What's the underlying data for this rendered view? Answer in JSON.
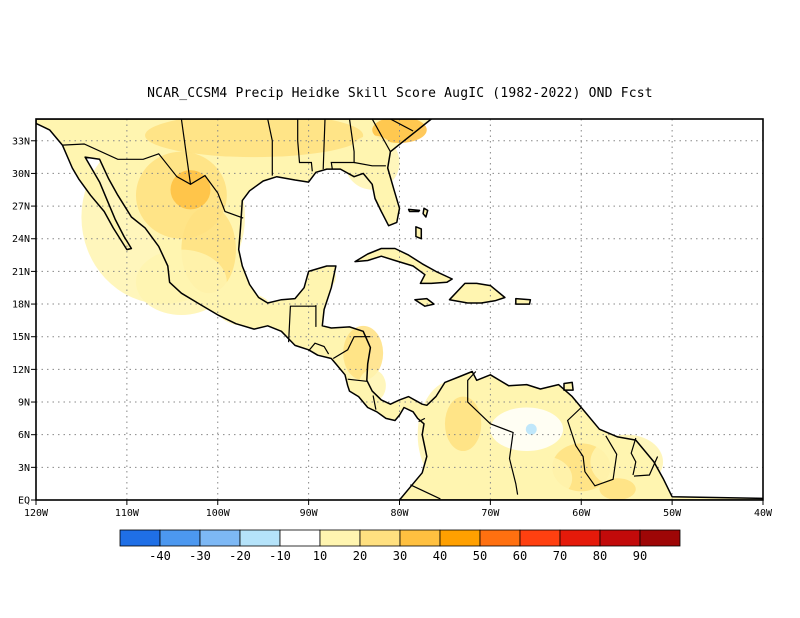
{
  "title": "NCAR_CCSM4 Precip Heidke Skill Score AugIC (1982-2022) OND Fcst",
  "map": {
    "lon_range": [
      -120,
      -40
    ],
    "lat_range": [
      0,
      35
    ],
    "x_ticks": [
      {
        "lon": -120,
        "label": "120W"
      },
      {
        "lon": -110,
        "label": "110W"
      },
      {
        "lon": -100,
        "label": "100W"
      },
      {
        "lon": -90,
        "label": "90W"
      },
      {
        "lon": -80,
        "label": "80W"
      },
      {
        "lon": -70,
        "label": "70W"
      },
      {
        "lon": -60,
        "label": "60W"
      },
      {
        "lon": -50,
        "label": "50W"
      },
      {
        "lon": -40,
        "label": "40W"
      }
    ],
    "y_ticks": [
      {
        "lat": 0,
        "label": "EQ"
      },
      {
        "lat": 3,
        "label": "3N"
      },
      {
        "lat": 6,
        "label": "6N"
      },
      {
        "lat": 9,
        "label": "9N"
      },
      {
        "lat": 12,
        "label": "12N"
      },
      {
        "lat": 15,
        "label": "15N"
      },
      {
        "lat": 18,
        "label": "18N"
      },
      {
        "lat": 21,
        "label": "21N"
      },
      {
        "lat": 24,
        "label": "24N"
      },
      {
        "lat": 27,
        "label": "27N"
      },
      {
        "lat": 30,
        "label": "30N"
      },
      {
        "lat": 33,
        "label": "33N"
      }
    ],
    "grid": "dotted"
  },
  "colorbar": {
    "colors": [
      "#1f6fe6",
      "#4c98f0",
      "#7db8f5",
      "#b5e3fa",
      "#ffffff",
      "#fff5b0",
      "#ffe080",
      "#ffc040",
      "#ffa000",
      "#ff7010",
      "#ff4010",
      "#e51a0a",
      "#c20a0a",
      "#9e0606"
    ],
    "labels": [
      "-40",
      "-30",
      "-20",
      "-10",
      "10",
      "20",
      "30",
      "40",
      "50",
      "60",
      "70",
      "80",
      "90"
    ]
  },
  "landmasses": [
    {
      "name": "north-america-mexico",
      "points": [
        [
          -120,
          34.6
        ],
        [
          -118.5,
          34
        ],
        [
          -117.1,
          32.6
        ],
        [
          -116,
          30.5
        ],
        [
          -115.3,
          29.5
        ],
        [
          -114,
          28
        ],
        [
          -112.5,
          26.5
        ],
        [
          -111.5,
          25
        ],
        [
          -110,
          23
        ],
        [
          -109.5,
          23.1
        ],
        [
          -110.3,
          24.2
        ],
        [
          -111.3,
          25.8
        ],
        [
          -112.2,
          27.6
        ],
        [
          -113,
          29.2
        ],
        [
          -114.6,
          31.5
        ],
        [
          -113,
          31.3
        ],
        [
          -112,
          29.5
        ],
        [
          -111,
          28
        ],
        [
          -109.5,
          26
        ],
        [
          -108,
          25
        ],
        [
          -106.5,
          23.3
        ],
        [
          -105.5,
          21.5
        ],
        [
          -105.3,
          20
        ],
        [
          -104,
          19
        ],
        [
          -102,
          18
        ],
        [
          -100,
          17
        ],
        [
          -98,
          16.2
        ],
        [
          -96,
          15.7
        ],
        [
          -94.5,
          16
        ],
        [
          -93,
          15.5
        ],
        [
          -91.5,
          14.2
        ],
        [
          -90,
          13.8
        ],
        [
          -89,
          13.3
        ],
        [
          -87.5,
          13
        ],
        [
          -87,
          12.5
        ],
        [
          -86,
          11.5
        ],
        [
          -85.7,
          10.5
        ],
        [
          -85.5,
          10
        ],
        [
          -84.5,
          9.5
        ],
        [
          -83.5,
          8.5
        ],
        [
          -82.5,
          8.1
        ],
        [
          -81.5,
          7.5
        ],
        [
          -80.5,
          7.3
        ],
        [
          -80,
          7.8
        ],
        [
          -79.5,
          8.5
        ],
        [
          -78.5,
          8.1
        ],
        [
          -78,
          7.5
        ],
        [
          -77.3,
          7
        ],
        [
          -77.5,
          6
        ],
        [
          -77,
          4
        ],
        [
          -77.5,
          2.5
        ],
        [
          -78.5,
          1.5
        ],
        [
          -80,
          0
        ],
        [
          -30,
          0
        ],
        [
          -50,
          0.3
        ],
        [
          -51,
          2
        ],
        [
          -52,
          3.5
        ],
        [
          -54,
          5.5
        ],
        [
          -56,
          5.8
        ],
        [
          -58,
          6.5
        ],
        [
          -59.5,
          8
        ],
        [
          -61,
          9.5
        ],
        [
          -62.5,
          10.6
        ],
        [
          -64.5,
          10.2
        ],
        [
          -66,
          10.6
        ],
        [
          -68,
          10.5
        ],
        [
          -70,
          11.5
        ],
        [
          -71.5,
          11
        ],
        [
          -72,
          11.8
        ],
        [
          -73.5,
          11.3
        ],
        [
          -75,
          10.8
        ],
        [
          -76,
          9.5
        ],
        [
          -77,
          8.7
        ],
        [
          -77.5,
          8.8
        ],
        [
          -79,
          9.5
        ],
        [
          -80,
          9.2
        ],
        [
          -81,
          8.8
        ],
        [
          -82,
          9.2
        ],
        [
          -83,
          10
        ],
        [
          -83.6,
          11
        ],
        [
          -83.5,
          12.5
        ],
        [
          -83.2,
          14
        ],
        [
          -84,
          15.5
        ],
        [
          -85.5,
          15.9
        ],
        [
          -87.5,
          15.8
        ],
        [
          -88.5,
          16
        ],
        [
          -88.3,
          17.5
        ],
        [
          -87.5,
          19.5
        ],
        [
          -87,
          21.5
        ],
        [
          -88,
          21.5
        ],
        [
          -90,
          21
        ],
        [
          -90.5,
          19.5
        ],
        [
          -91.5,
          18.5
        ],
        [
          -93,
          18.4
        ],
        [
          -94.5,
          18.1
        ],
        [
          -95.5,
          18.6
        ],
        [
          -96.5,
          19.8
        ],
        [
          -97.3,
          21.5
        ],
        [
          -97.7,
          23
        ],
        [
          -97.5,
          25
        ],
        [
          -97.3,
          27.5
        ],
        [
          -96.5,
          28.4
        ],
        [
          -95,
          29.3
        ],
        [
          -93.5,
          29.7
        ],
        [
          -91.5,
          29.4
        ],
        [
          -90,
          29.2
        ],
        [
          -89.2,
          30.1
        ],
        [
          -88,
          30.4
        ],
        [
          -86.5,
          30.4
        ],
        [
          -85,
          29.7
        ],
        [
          -84,
          30
        ],
        [
          -83,
          29
        ],
        [
          -82.7,
          27.7
        ],
        [
          -82,
          26.5
        ],
        [
          -81.2,
          25.2
        ],
        [
          -80.3,
          25.5
        ],
        [
          -80,
          26.8
        ],
        [
          -80.6,
          28.5
        ],
        [
          -81.3,
          30.5
        ],
        [
          -81,
          32
        ],
        [
          -79.5,
          33
        ],
        [
          -78,
          34
        ],
        [
          -76.5,
          35
        ],
        [
          -120,
          35
        ]
      ]
    },
    {
      "name": "cuba",
      "points": [
        [
          -84.9,
          21.9
        ],
        [
          -83.5,
          22.6
        ],
        [
          -82,
          23.1
        ],
        [
          -80.5,
          23.1
        ],
        [
          -79,
          22.5
        ],
        [
          -77.5,
          21.7
        ],
        [
          -76,
          21
        ],
        [
          -74.2,
          20.3
        ],
        [
          -74.8,
          20
        ],
        [
          -76.5,
          19.9
        ],
        [
          -77.7,
          19.9
        ],
        [
          -77.2,
          20.7
        ],
        [
          -78.5,
          21.5
        ],
        [
          -80.5,
          22
        ],
        [
          -82,
          22.4
        ],
        [
          -83.5,
          22
        ],
        [
          -84.9,
          21.9
        ]
      ]
    },
    {
      "name": "hispaniola",
      "points": [
        [
          -74.5,
          18.4
        ],
        [
          -72.8,
          19.9
        ],
        [
          -71.5,
          19.9
        ],
        [
          -70,
          19.7
        ],
        [
          -68.4,
          18.6
        ],
        [
          -69.5,
          18.3
        ],
        [
          -71,
          18.1
        ],
        [
          -72.5,
          18.1
        ],
        [
          -74.5,
          18.4
        ]
      ]
    },
    {
      "name": "jamaica",
      "points": [
        [
          -78.3,
          18.4
        ],
        [
          -77,
          18.5
        ],
        [
          -76.2,
          18
        ],
        [
          -77.2,
          17.8
        ],
        [
          -78.3,
          18.4
        ]
      ]
    },
    {
      "name": "puerto-rico",
      "points": [
        [
          -67.2,
          18.5
        ],
        [
          -65.6,
          18.4
        ],
        [
          -65.7,
          18
        ],
        [
          -67.2,
          18
        ]
      ]
    },
    {
      "name": "trinidad",
      "points": [
        [
          -61.9,
          10.7
        ],
        [
          -61,
          10.8
        ],
        [
          -60.9,
          10.1
        ],
        [
          -61.9,
          10.1
        ]
      ]
    },
    {
      "name": "bahamas-andros",
      "points": [
        [
          -78.2,
          25.1
        ],
        [
          -77.6,
          24.9
        ],
        [
          -77.6,
          24.0
        ],
        [
          -78.2,
          24.2
        ]
      ]
    },
    {
      "name": "bahamas-abaco",
      "points": [
        [
          -77.3,
          26.8
        ],
        [
          -76.9,
          26.6
        ],
        [
          -77.1,
          26.0
        ],
        [
          -77.4,
          26.3
        ]
      ]
    },
    {
      "name": "bahamas-gbi",
      "points": [
        [
          -79.0,
          26.7
        ],
        [
          -77.8,
          26.6
        ],
        [
          -77.9,
          26.5
        ],
        [
          -78.9,
          26.5
        ]
      ]
    }
  ],
  "borders": [
    [
      [
        -117.1,
        32.6
      ],
      [
        -114.7,
        32.7
      ],
      [
        -111,
        31.3
      ],
      [
        -108.2,
        31.3
      ],
      [
        -106.5,
        31.8
      ],
      [
        -104.5,
        29.7
      ],
      [
        -103,
        29
      ],
      [
        -101.4,
        29.8
      ],
      [
        -100,
        28.2
      ],
      [
        -99.2,
        26.5
      ],
      [
        -97.2,
        25.9
      ]
    ],
    [
      [
        -92.2,
        14.5
      ],
      [
        -92,
        17.8
      ],
      [
        -91,
        17.8
      ],
      [
        -90.9,
        17.8
      ],
      [
        -89.2,
        17.8
      ]
    ],
    [
      [
        -89.2,
        17.9
      ],
      [
        -89.2,
        15.9
      ]
    ],
    [
      [
        -90,
        13.7
      ],
      [
        -89.3,
        14.4
      ],
      [
        -88.3,
        14.1
      ],
      [
        -87.8,
        13.4
      ]
    ],
    [
      [
        -87.3,
        13
      ],
      [
        -85.7,
        13.8
      ],
      [
        -85,
        15
      ],
      [
        -83.2,
        15
      ]
    ],
    [
      [
        -85.7,
        11.1
      ],
      [
        -83.6,
        10.9
      ]
    ],
    [
      [
        -82.9,
        9.6
      ],
      [
        -82.6,
        8.3
      ]
    ],
    [
      [
        -77.2,
        7.5
      ],
      [
        -77.9,
        7.2
      ]
    ],
    [
      [
        -78.8,
        1.4
      ],
      [
        -75.5,
        0.1
      ]
    ],
    [
      [
        -71.6,
        11.8
      ],
      [
        -72.5,
        11
      ],
      [
        -72.5,
        9
      ],
      [
        -70,
        7
      ],
      [
        -67.5,
        6.2
      ],
      [
        -67.9,
        3.8
      ],
      [
        -67.2,
        1.5
      ],
      [
        -67,
        0.5
      ]
    ],
    [
      [
        -60,
        8.5
      ],
      [
        -61.5,
        7.3
      ],
      [
        -60.6,
        5
      ],
      [
        -59.8,
        4
      ],
      [
        -59.6,
        2.6
      ],
      [
        -58.5,
        1.3
      ],
      [
        -56.5,
        1.9
      ],
      [
        -56.1,
        4.2
      ],
      [
        -57.3,
        5.9
      ]
    ],
    [
      [
        -54,
        5.7
      ],
      [
        -54.5,
        4.3
      ],
      [
        -54,
        3.5
      ],
      [
        -54.3,
        2.3
      ]
    ],
    [
      [
        -51.6,
        4
      ],
      [
        -52.5,
        2.3
      ],
      [
        -54.2,
        2.2
      ]
    ],
    [
      [
        -104,
        35
      ],
      [
        -103,
        29
      ]
    ],
    [
      [
        -94.5,
        35
      ],
      [
        -94,
        33
      ],
      [
        -94,
        29.8
      ]
    ],
    [
      [
        -91.2,
        35
      ],
      [
        -91.2,
        33
      ],
      [
        -91,
        31
      ],
      [
        -89.7,
        31
      ],
      [
        -89.6,
        30.2
      ]
    ],
    [
      [
        -88.2,
        35
      ],
      [
        -88.4,
        30.4
      ]
    ],
    [
      [
        -85.5,
        35
      ],
      [
        -85,
        32
      ],
      [
        -85,
        31
      ],
      [
        -87.5,
        31
      ],
      [
        -87.4,
        30.4
      ]
    ],
    [
      [
        -85,
        31
      ],
      [
        -83,
        30.7
      ],
      [
        -81.5,
        30.7
      ]
    ],
    [
      [
        -81,
        32
      ],
      [
        -83,
        35
      ]
    ],
    [
      [
        -78.5,
        33.9
      ],
      [
        -81,
        35
      ]
    ]
  ],
  "skill_patches": [
    {
      "bin": 5,
      "lon": -106,
      "lat": 26,
      "rx": 9,
      "ry": 8
    },
    {
      "bin": 6,
      "lon": -104,
      "lat": 28,
      "rx": 5,
      "ry": 4
    },
    {
      "bin": 7,
      "lon": -103,
      "lat": 28.5,
      "rx": 2.2,
      "ry": 1.8
    },
    {
      "bin": 6,
      "lon": -101,
      "lat": 23,
      "rx": 3,
      "ry": 4
    },
    {
      "bin": 5,
      "lon": -104,
      "lat": 20,
      "rx": 5,
      "ry": 3
    },
    {
      "bin": 5,
      "lon": -97,
      "lat": 17.5,
      "rx": 3,
      "ry": 1.5
    },
    {
      "bin": 6,
      "lon": -96,
      "lat": 33.5,
      "rx": 12,
      "ry": 2
    },
    {
      "bin": 7,
      "lon": -80,
      "lat": 34,
      "rx": 3,
      "ry": 1.2
    },
    {
      "bin": 5,
      "lon": -83,
      "lat": 31,
      "rx": 3,
      "ry": 2.5
    },
    {
      "bin": 6,
      "lon": -84,
      "lat": 13.5,
      "rx": 2.2,
      "ry": 2.5
    },
    {
      "bin": 5,
      "lon": -83,
      "lat": 10.5,
      "rx": 1.5,
      "ry": 1.5
    },
    {
      "bin": 5,
      "lon": -88,
      "lat": 20.5,
      "rx": 1,
      "ry": 1
    },
    {
      "bin": 5,
      "lon": -74,
      "lat": 6,
      "rx": 4,
      "ry": 5
    },
    {
      "bin": 6,
      "lon": -73,
      "lat": 7,
      "rx": 2,
      "ry": 2.5
    },
    {
      "bin": 6,
      "lon": -60,
      "lat": 3,
      "rx": 3.2,
      "ry": 2.2
    },
    {
      "bin": 5,
      "lon": -55,
      "lat": 3.5,
      "rx": 4,
      "ry": 2.5
    },
    {
      "bin": 6,
      "lon": -56,
      "lat": 1,
      "rx": 2,
      "ry": 1
    },
    {
      "bin": 5,
      "lon": -64,
      "lat": 2,
      "rx": 3,
      "ry": 2
    },
    {
      "bin": 4,
      "lon": -66,
      "lat": 6.5,
      "rx": 4,
      "ry": 2
    },
    {
      "bin": 3,
      "lon": -65.5,
      "lat": 6.5,
      "rx": 0.6,
      "ry": 0.5
    }
  ]
}
